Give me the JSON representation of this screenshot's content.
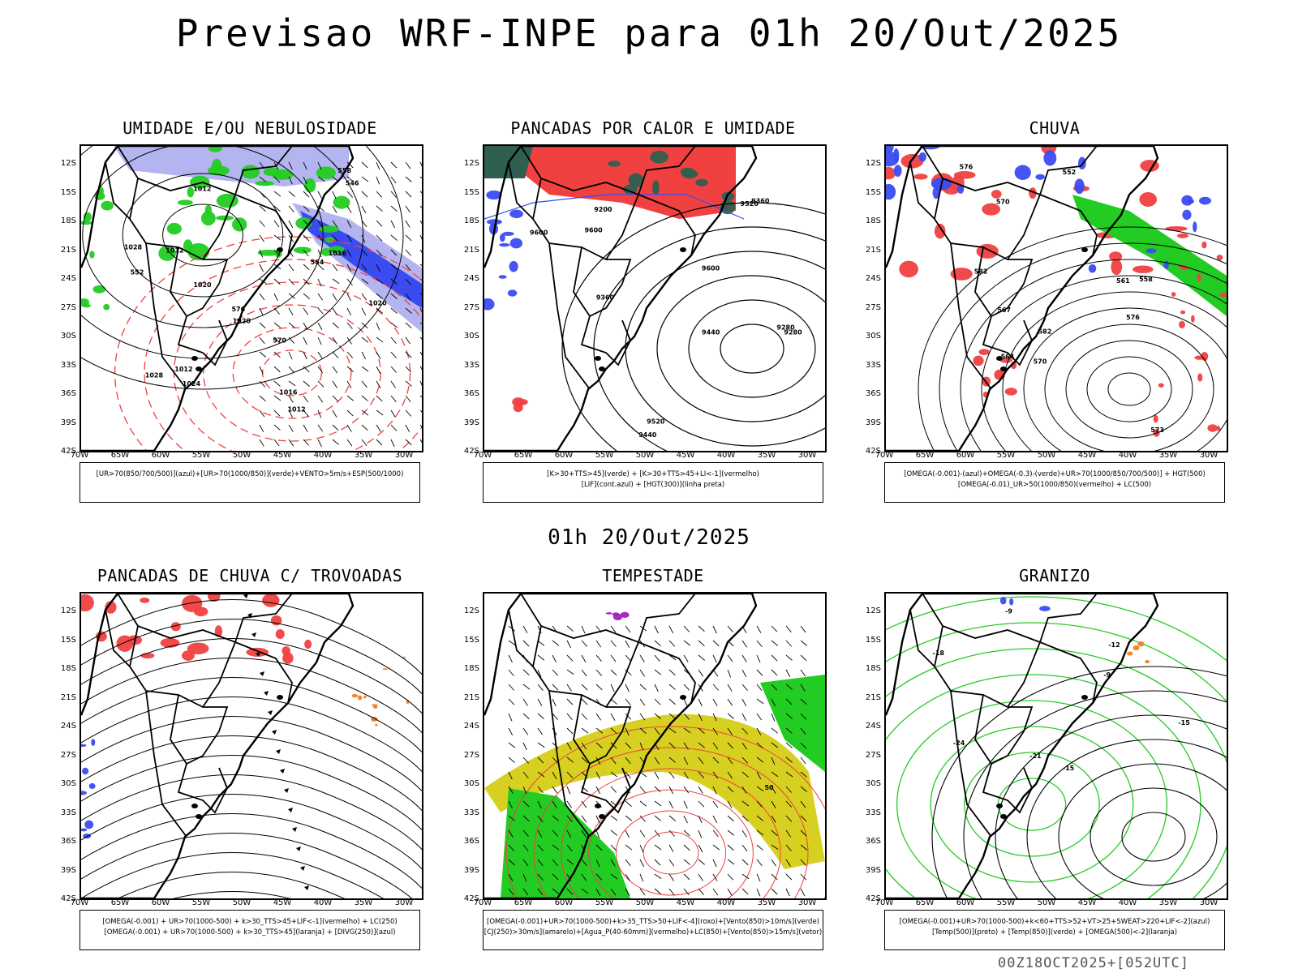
{
  "title": "Previsao WRF-INPE  para 01h 20/Out/2025",
  "mid_label": "01h 20/Out/2025",
  "footer": "00Z18OCT2025+[052UTC]",
  "lat_ticks": [
    "12S",
    "15S",
    "18S",
    "21S",
    "24S",
    "27S",
    "30S",
    "33S",
    "36S",
    "39S",
    "42S"
  ],
  "lon_ticks": [
    "70W",
    "65W",
    "60W",
    "55W",
    "50W",
    "45W",
    "40W",
    "35W",
    "30W"
  ],
  "colors": {
    "blue": "#3a4cf0",
    "green": "#22cc22",
    "red": "#f04040",
    "lavender": "#b4b4f0",
    "yellow": "#d8d020",
    "orange": "#f08020",
    "purple": "#a020c0",
    "darkgreen": "#2f5f50"
  },
  "panels": [
    {
      "title": "UMIDADE E/OU NEBULOSIDADE",
      "legend": [
        "[UR>70(850/700/500)](azul)+[UR>70(1000/850)](verde)+VENTO>5m/s+ESP(500/1000)"
      ],
      "contour_labels": [
        "1012",
        "1012",
        "1012",
        "1012",
        "1016",
        "1016",
        "1020",
        "1020",
        "1020",
        "1024",
        "1028",
        "1028",
        "576",
        "570",
        "564",
        "558",
        "552",
        "546"
      ]
    },
    {
      "title": "PANCADAS POR CALOR E UMIDADE",
      "legend": [
        "[K>30+TTS>45](verde) + [K>30+TTS>45+LI<-1](vermelho)",
        "[LIF](cont.azul) + [HGT(300)](linha preta)"
      ],
      "contour_labels": [
        "9600",
        "9600",
        "9600",
        "9520",
        "9520",
        "9440",
        "9440",
        "9360",
        "9360",
        "9280",
        "9280",
        "9200"
      ]
    },
    {
      "title": "CHUVA",
      "legend": [
        "[OMEGA(-0.001)-(azul)+OMEGA(-0.3)-(verde)+UR>70(1000/850/700/500)] + HGT(500)",
        "[OMEGA(-0.01)_UR>50(1000/850)(vermelho) + LC(500)"
      ],
      "contour_labels": [
        "582",
        "582",
        "576",
        "576",
        "573",
        "570",
        "570",
        "567",
        "564",
        "561",
        "558",
        "552"
      ]
    },
    {
      "title": "PANCADAS DE CHUVA C/ TROVOADAS",
      "legend": [
        "[OMEGA(-0.001) + UR>70(1000-500) + k>30_TTS>45+LIF<-1](vermelho) + LC(250)",
        "[OMEGA(-0.001) + UR>70(1000-500) + k>30_TTS>45](laranja) + [DIVG(250)](azul)"
      ],
      "contour_labels": []
    },
    {
      "title": "TEMPESTADE",
      "legend": [
        "[OMEGA(-0.001)+UR>70(1000-500)+k>35_TTS>50+LIF<-4](roxo)+[Vento(850)>10m/s](verde)",
        "[CJ(250)>30m/s](amarelo)+[Agua_P(40-60mm)](vermelho)+LC(850)+[Vento(850)>15m/s](vetor)"
      ],
      "contour_labels": [
        "50"
      ]
    },
    {
      "title": "GRANIZO",
      "legend": [
        "[OMEGA(-0.001)+UR>70(1000-500)+k<60+TTS>52+VT>25+SWEAT>220+LIF<-2](azul)",
        "[Temp(500)](preto) + [Temp(850)](verde) + [OMEGA(500)<-2](laranja)"
      ],
      "contour_labels": [
        "-9",
        "-12",
        "-15",
        "-21",
        "-15",
        "-24",
        "-18",
        "-9"
      ]
    }
  ]
}
